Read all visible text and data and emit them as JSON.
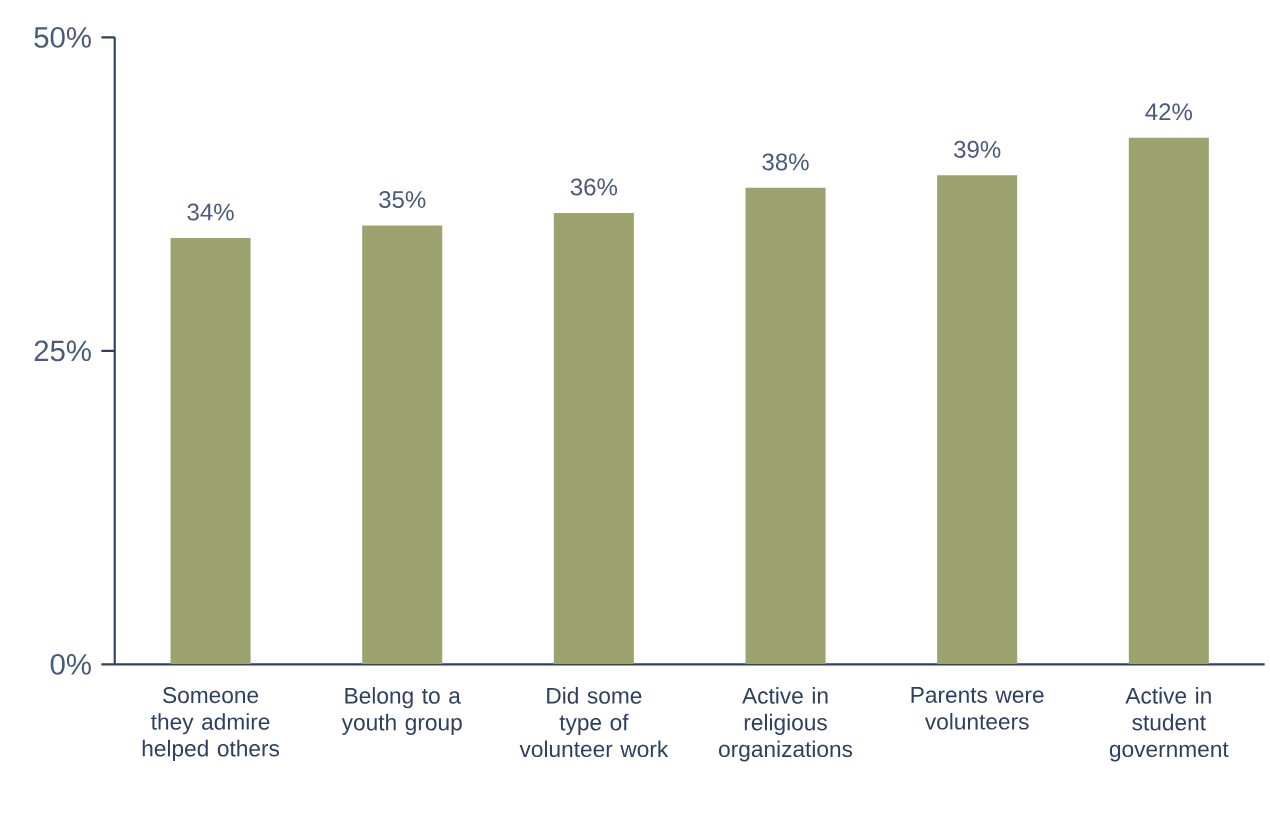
{
  "chart_data": {
    "type": "bar",
    "categories": [
      "Someone they admire helped others",
      "Belong to a youth group",
      "Did some type of volunteer work",
      "Active in religious organizations",
      "Parents were volunteers",
      "Active in student government"
    ],
    "values": [
      34,
      35,
      36,
      38,
      39,
      42
    ],
    "value_labels": [
      "34%",
      "35%",
      "36%",
      "38%",
      "39%",
      "42%"
    ],
    "color": "#9ca36e",
    "ylim": [
      0,
      50
    ],
    "yticks": [
      {
        "value": 0,
        "label": "0%"
      },
      {
        "value": 25,
        "label": "25%"
      },
      {
        "value": 50,
        "label": "50%"
      }
    ],
    "grid": false
  }
}
